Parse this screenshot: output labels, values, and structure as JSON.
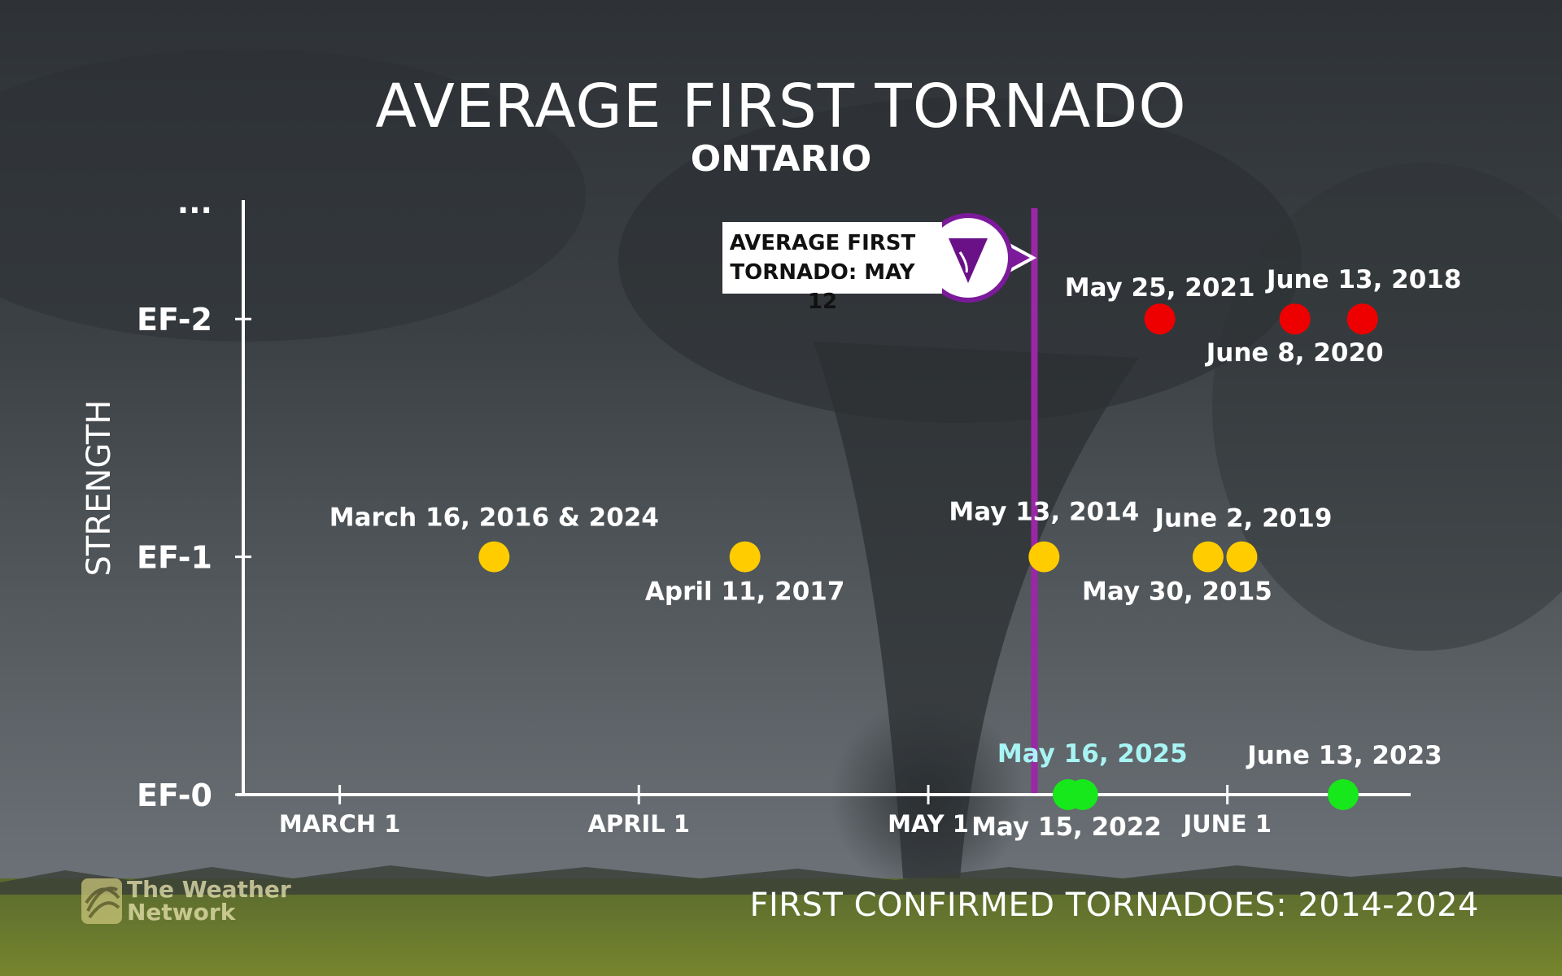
{
  "colors": {
    "avg_line": "#9b27a8",
    "ef0": "#17e81b",
    "ef1": "#ffcc00",
    "ef2": "#ee0000",
    "highlight_label": "#a8f4f4",
    "text": "#ffffff"
  },
  "title": "AVERAGE FIRST TORNADO",
  "subtitle": "ONTARIO",
  "footer": "FIRST CONFIRMED TORNADOES: 2014-2024",
  "logo": {
    "line1": "The Weather",
    "line2": "Network",
    "icon": "globe-swirl-icon"
  },
  "callout": {
    "line1": "AVERAGE FIRST",
    "line2": "TORNADO: MAY 12",
    "icon": "tornado-funnel-icon"
  },
  "chart_data": {
    "type": "scatter",
    "title": "AVERAGE FIRST TORNADO",
    "subtitle": "ONTARIO",
    "xlabel": "",
    "ylabel": "STRENGTH",
    "x_unit": "day of year",
    "xlim": [
      50,
      171
    ],
    "x_ticks": [
      {
        "label": "MARCH 1",
        "value": 60
      },
      {
        "label": "APRIL 1",
        "value": 91
      },
      {
        "label": "MAY 1",
        "value": 121
      },
      {
        "label": "JUNE 1",
        "value": 152
      }
    ],
    "y_ticks": [
      {
        "label": "EF-0",
        "value": 0
      },
      {
        "label": "EF-1",
        "value": 1
      },
      {
        "label": "EF-2",
        "value": 2
      },
      {
        "label": "...",
        "value": 2.5
      }
    ],
    "ylim": [
      0,
      2.5
    ],
    "average": {
      "label": "AVERAGE FIRST TORNADO: MAY 12",
      "value": 132
    },
    "points": [
      {
        "label": "March 16, 2016 & 2024",
        "x": 76,
        "y": 1,
        "label_pos": "above"
      },
      {
        "label": "April 11, 2017",
        "x": 102,
        "y": 1,
        "label_pos": "below"
      },
      {
        "label": "May 13, 2014",
        "x": 133,
        "y": 1,
        "label_pos": "above"
      },
      {
        "label": "May 30, 2015",
        "x": 150,
        "y": 1,
        "label_pos": "below"
      },
      {
        "label": "June 2, 2019",
        "x": 153.5,
        "y": 1,
        "label_pos": "above"
      },
      {
        "label": "May 25, 2021",
        "x": 145,
        "y": 2,
        "label_pos": "above"
      },
      {
        "label": "June 8, 2020",
        "x": 159,
        "y": 2,
        "label_pos": "below"
      },
      {
        "label": "June 13, 2018",
        "x": 166,
        "y": 2,
        "label_pos": "above"
      },
      {
        "label": "May 15, 2022",
        "x": 135.5,
        "y": 0,
        "label_pos": "below"
      },
      {
        "label": "May 16, 2025",
        "x": 137,
        "y": 0,
        "label_pos": "above",
        "highlight": true
      },
      {
        "label": "June 13, 2023",
        "x": 164,
        "y": 0,
        "label_pos": "above"
      }
    ]
  }
}
